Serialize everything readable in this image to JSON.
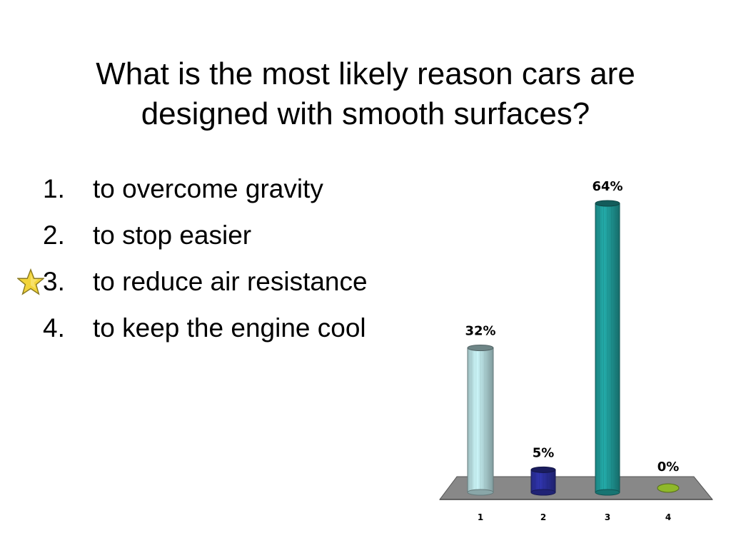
{
  "title": {
    "line1": "What is the most likely reason cars are",
    "line2": "designed with smooth surfaces?"
  },
  "options": [
    {
      "number": "1.",
      "text": "to overcome gravity",
      "correct": false
    },
    {
      "number": "2.",
      "text": "to stop easier",
      "correct": false
    },
    {
      "number": "3.",
      "text": "to reduce air resistance",
      "correct": true
    },
    {
      "number": "4.",
      "text": "to keep the engine cool",
      "correct": false
    }
  ],
  "correct_marker_icon": "star-icon",
  "chart_data": {
    "type": "bar",
    "categories": [
      "1",
      "2",
      "3",
      "4"
    ],
    "values": [
      32,
      5,
      64,
      0
    ],
    "data_labels": [
      "32%",
      "5%",
      "64%",
      "0%"
    ],
    "colors": [
      "#b7dde0",
      "#2b2f9c",
      "#1f9a98",
      "#8fb82a"
    ],
    "ylim": [
      0,
      64
    ]
  }
}
